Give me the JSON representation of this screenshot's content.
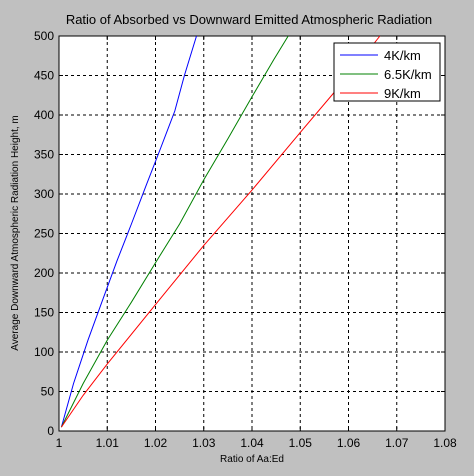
{
  "chart_data": {
    "type": "line",
    "title": "Ratio of Absorbed vs Downward Emitted Atmospheric Radiation",
    "xlabel": "Ratio of Aa:Ed",
    "ylabel": "Average Downward Atmospheric Radiation Height, m",
    "xlim": [
      1,
      1.08
    ],
    "ylim": [
      0,
      500
    ],
    "xticks": [
      "1",
      "1.01",
      "1.02",
      "1.03",
      "1.04",
      "1.05",
      "1.06",
      "1.07",
      "1.08"
    ],
    "yticks": [
      "0",
      "50",
      "100",
      "150",
      "200",
      "250",
      "300",
      "350",
      "400",
      "450",
      "500"
    ],
    "xtick_values": [
      1,
      1.01,
      1.02,
      1.03,
      1.04,
      1.05,
      1.06,
      1.07,
      1.08
    ],
    "ytick_values": [
      0,
      50,
      100,
      150,
      200,
      250,
      300,
      350,
      400,
      450,
      500
    ],
    "grid": true,
    "legend_position": "top-right",
    "series": [
      {
        "name": "4K/km",
        "color": "#0000ff",
        "points": [
          [
            1.0005,
            5
          ],
          [
            1.003,
            60
          ],
          [
            1.006,
            115
          ],
          [
            1.009,
            165
          ],
          [
            1.012,
            215
          ],
          [
            1.015,
            262
          ],
          [
            1.018,
            310
          ],
          [
            1.021,
            357
          ],
          [
            1.024,
            405
          ],
          [
            1.026,
            450
          ],
          [
            1.0285,
            500
          ]
        ]
      },
      {
        "name": "6.5K/km",
        "color": "#008000",
        "points": [
          [
            1.0005,
            5
          ],
          [
            1.005,
            60
          ],
          [
            1.01,
            115
          ],
          [
            1.015,
            163
          ],
          [
            1.02,
            213
          ],
          [
            1.025,
            262
          ],
          [
            1.03,
            318
          ],
          [
            1.035,
            370
          ],
          [
            1.04,
            423
          ],
          [
            1.0445,
            470
          ],
          [
            1.0475,
            500
          ]
        ]
      },
      {
        "name": "9K/km",
        "color": "#ff0000",
        "points": [
          [
            1.0005,
            5
          ],
          [
            1.005,
            45
          ],
          [
            1.01,
            85
          ],
          [
            1.02,
            160
          ],
          [
            1.03,
            235
          ],
          [
            1.04,
            305
          ],
          [
            1.05,
            378
          ],
          [
            1.06,
            450
          ],
          [
            1.0665,
            500
          ]
        ]
      }
    ]
  }
}
